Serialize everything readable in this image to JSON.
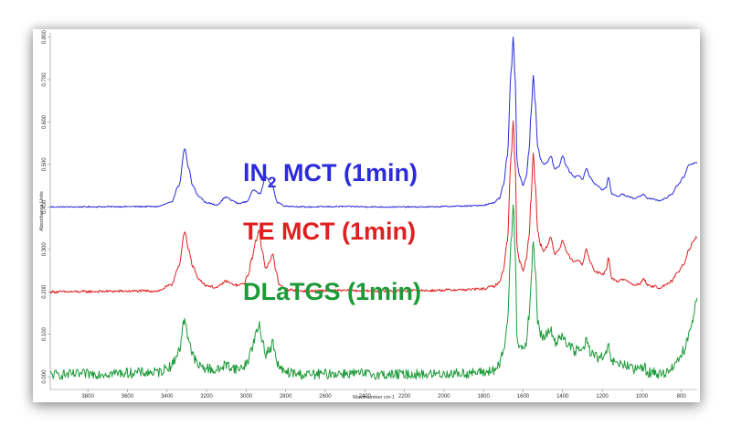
{
  "chart_data": {
    "type": "line",
    "xlabel": "Wavenumber cm-1",
    "ylabel": "Absorbance Units",
    "xlim": [
      3990,
      720
    ],
    "ylim": [
      -0.03,
      0.81
    ],
    "x_reversed": true,
    "grid": false,
    "xticks": [
      3800,
      3600,
      3400,
      3200,
      3000,
      2800,
      2600,
      2400,
      2200,
      2000,
      1800,
      1600,
      1400,
      1200,
      1000,
      800
    ],
    "yticks": [
      {
        "value": 0.0,
        "label": "0.000"
      },
      {
        "value": 0.1,
        "label": "0.100"
      },
      {
        "value": 0.2,
        "label": "0.200"
      },
      {
        "value": 0.3,
        "label": "0.300"
      },
      {
        "value": 0.4,
        "label": "0.400"
      },
      {
        "value": 0.5,
        "label": "0.500"
      },
      {
        "value": 0.6,
        "label": "0.600"
      },
      {
        "value": 0.7,
        "label": "0.700"
      },
      {
        "value": 0.8,
        "label": "0.800"
      }
    ],
    "series": [
      {
        "name_main": "lN",
        "name_sub": "2",
        "name_rest": " MCT (1min)",
        "color": "#2b2bdc",
        "noise": 0.0015,
        "x": [
          3990,
          3450,
          3380,
          3340,
          3310,
          3290,
          3270,
          3240,
          3200,
          3150,
          3100,
          3070,
          3040,
          3000,
          2960,
          2930,
          2900,
          2870,
          2840,
          2800,
          2700,
          2500,
          2300,
          2100,
          1900,
          1800,
          1750,
          1720,
          1700,
          1680,
          1660,
          1650,
          1640,
          1630,
          1615,
          1600,
          1585,
          1570,
          1560,
          1548,
          1540,
          1525,
          1510,
          1495,
          1480,
          1460,
          1440,
          1420,
          1400,
          1380,
          1360,
          1340,
          1320,
          1300,
          1280,
          1260,
          1240,
          1220,
          1200,
          1180,
          1170,
          1150,
          1120,
          1100,
          1070,
          1040,
          1010,
          990,
          970,
          940,
          910,
          880,
          850,
          820,
          790,
          760,
          720
        ],
        "y": [
          0.4,
          0.401,
          0.41,
          0.45,
          0.536,
          0.49,
          0.45,
          0.425,
          0.41,
          0.405,
          0.423,
          0.415,
          0.408,
          0.412,
          0.44,
          0.432,
          0.47,
          0.452,
          0.41,
          0.402,
          0.4,
          0.401,
          0.4,
          0.4,
          0.402,
          0.404,
          0.41,
          0.42,
          0.45,
          0.52,
          0.72,
          0.8,
          0.7,
          0.5,
          0.47,
          0.45,
          0.47,
          0.53,
          0.62,
          0.71,
          0.65,
          0.54,
          0.51,
          0.5,
          0.505,
          0.52,
          0.49,
          0.495,
          0.52,
          0.495,
          0.48,
          0.47,
          0.475,
          0.465,
          0.49,
          0.47,
          0.455,
          0.45,
          0.44,
          0.445,
          0.47,
          0.43,
          0.425,
          0.43,
          0.425,
          0.42,
          0.425,
          0.43,
          0.42,
          0.418,
          0.415,
          0.42,
          0.43,
          0.45,
          0.47,
          0.5,
          0.505
        ]
      },
      {
        "name": "TE MCT (1min)",
        "color": "#e02020",
        "noise": 0.003,
        "x": [
          3990,
          3450,
          3380,
          3340,
          3310,
          3290,
          3270,
          3240,
          3200,
          3150,
          3100,
          3070,
          3040,
          3010,
          2990,
          2970,
          2950,
          2935,
          2920,
          2900,
          2880,
          2865,
          2850,
          2830,
          2800,
          2700,
          2500,
          2300,
          2100,
          1900,
          1800,
          1750,
          1720,
          1700,
          1680,
          1660,
          1650,
          1640,
          1630,
          1615,
          1600,
          1585,
          1570,
          1560,
          1548,
          1540,
          1525,
          1510,
          1495,
          1480,
          1460,
          1440,
          1420,
          1400,
          1380,
          1360,
          1340,
          1320,
          1300,
          1280,
          1260,
          1240,
          1220,
          1200,
          1180,
          1170,
          1150,
          1120,
          1100,
          1070,
          1040,
          1010,
          990,
          970,
          940,
          910,
          880,
          850,
          820,
          790,
          760,
          740,
          720
        ],
        "y": [
          0.2,
          0.202,
          0.215,
          0.26,
          0.34,
          0.3,
          0.26,
          0.23,
          0.215,
          0.21,
          0.225,
          0.218,
          0.215,
          0.22,
          0.24,
          0.28,
          0.32,
          0.345,
          0.3,
          0.255,
          0.27,
          0.29,
          0.25,
          0.215,
          0.205,
          0.202,
          0.203,
          0.202,
          0.203,
          0.205,
          0.207,
          0.213,
          0.222,
          0.25,
          0.32,
          0.52,
          0.6,
          0.5,
          0.3,
          0.27,
          0.25,
          0.275,
          0.33,
          0.42,
          0.53,
          0.46,
          0.34,
          0.31,
          0.295,
          0.305,
          0.33,
          0.29,
          0.3,
          0.32,
          0.295,
          0.28,
          0.27,
          0.275,
          0.265,
          0.3,
          0.27,
          0.25,
          0.245,
          0.24,
          0.25,
          0.28,
          0.23,
          0.225,
          0.23,
          0.225,
          0.215,
          0.22,
          0.23,
          0.215,
          0.213,
          0.21,
          0.215,
          0.225,
          0.245,
          0.265,
          0.3,
          0.32,
          0.33
        ]
      },
      {
        "name": "DLaTGS (1min)",
        "color": "#1c9a38",
        "noise": 0.012,
        "x": [
          3990,
          3450,
          3380,
          3340,
          3310,
          3290,
          3270,
          3240,
          3200,
          3150,
          3100,
          3070,
          3040,
          3010,
          2990,
          2970,
          2950,
          2935,
          2920,
          2900,
          2880,
          2865,
          2850,
          2830,
          2800,
          2700,
          2500,
          2300,
          2100,
          1900,
          1800,
          1750,
          1720,
          1700,
          1680,
          1660,
          1650,
          1640,
          1630,
          1615,
          1600,
          1585,
          1570,
          1560,
          1548,
          1540,
          1525,
          1510,
          1495,
          1480,
          1460,
          1440,
          1420,
          1400,
          1380,
          1360,
          1340,
          1320,
          1300,
          1280,
          1260,
          1240,
          1220,
          1200,
          1180,
          1170,
          1150,
          1120,
          1100,
          1070,
          1040,
          1010,
          990,
          970,
          940,
          910,
          880,
          850,
          820,
          790,
          760,
          740,
          720
        ],
        "y": [
          0.005,
          0.01,
          0.025,
          0.06,
          0.135,
          0.09,
          0.05,
          0.025,
          0.02,
          0.015,
          0.028,
          0.022,
          0.018,
          0.025,
          0.04,
          0.07,
          0.1,
          0.12,
          0.09,
          0.055,
          0.065,
          0.08,
          0.045,
          0.018,
          0.01,
          0.005,
          0.008,
          0.005,
          0.006,
          0.008,
          0.01,
          0.015,
          0.025,
          0.06,
          0.12,
          0.32,
          0.41,
          0.3,
          0.09,
          0.07,
          0.06,
          0.08,
          0.14,
          0.22,
          0.32,
          0.26,
          0.13,
          0.1,
          0.09,
          0.1,
          0.11,
          0.08,
          0.09,
          0.1,
          0.08,
          0.07,
          0.06,
          0.065,
          0.06,
          0.085,
          0.06,
          0.05,
          0.045,
          0.045,
          0.05,
          0.07,
          0.035,
          0.03,
          0.03,
          0.025,
          0.015,
          0.02,
          0.025,
          0.01,
          0.01,
          0.005,
          0.01,
          0.02,
          0.04,
          0.06,
          0.1,
          0.14,
          0.19
        ]
      }
    ]
  }
}
